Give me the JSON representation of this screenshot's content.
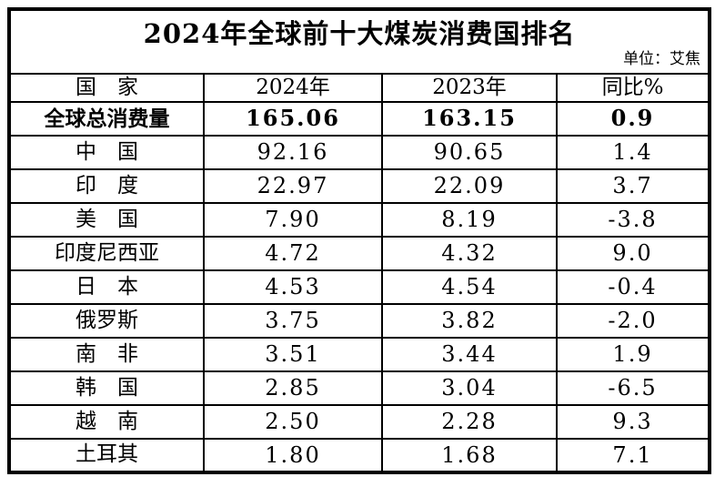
{
  "page": {
    "background": "#ffffff",
    "border_color": "#000000",
    "text_color": "#000000"
  },
  "title": "2024年全球前十大煤炭消费国排名",
  "unit_note": "单位：艾焦",
  "table": {
    "headers": {
      "country": "国　家",
      "year_2024": "2024年",
      "year_2023": "2023年",
      "yoy": "同比%"
    },
    "rows": [
      {
        "country": "全球总消费量",
        "y2024": "165.06",
        "y2023": "163.15",
        "yoy": "0.9"
      },
      {
        "country": "中　国",
        "y2024": "92.16",
        "y2023": "90.65",
        "yoy": "1.4"
      },
      {
        "country": "印　度",
        "y2024": "22.97",
        "y2023": "22.09",
        "yoy": "3.7"
      },
      {
        "country": "美　国",
        "y2024": "7.90",
        "y2023": "8.19",
        "yoy": "-3.8"
      },
      {
        "country": "印度尼西亚",
        "y2024": "4.72",
        "y2023": "4.32",
        "yoy": "9.0"
      },
      {
        "country": "日　本",
        "y2024": "4.53",
        "y2023": "4.54",
        "yoy": "-0.4"
      },
      {
        "country": "俄罗斯",
        "y2024": "3.75",
        "y2023": "3.82",
        "yoy": "-2.0"
      },
      {
        "country": "南　非",
        "y2024": "3.51",
        "y2023": "3.44",
        "yoy": "1.9"
      },
      {
        "country": "韩　国",
        "y2024": "2.85",
        "y2023": "3.04",
        "yoy": "-6.5"
      },
      {
        "country": "越　南",
        "y2024": "2.50",
        "y2023": "2.28",
        "yoy": "9.3"
      },
      {
        "country": "土耳其",
        "y2024": "1.80",
        "y2023": "1.68",
        "yoy": "7.1"
      }
    ]
  },
  "chart_data": {
    "type": "table",
    "title": "2024年全球前十大煤炭消费国排名",
    "unit": "艾焦",
    "columns": [
      "国家",
      "2024年",
      "2023年",
      "同比%"
    ],
    "rows": [
      [
        "全球总消费量",
        165.06,
        163.15,
        0.9
      ],
      [
        "中国",
        92.16,
        90.65,
        1.4
      ],
      [
        "印度",
        22.97,
        22.09,
        3.7
      ],
      [
        "美国",
        7.9,
        8.19,
        -3.8
      ],
      [
        "印度尼西亚",
        4.72,
        4.32,
        9.0
      ],
      [
        "日本",
        4.53,
        4.54,
        -0.4
      ],
      [
        "俄罗斯",
        3.75,
        3.82,
        -2.0
      ],
      [
        "南非",
        3.51,
        3.44,
        1.9
      ],
      [
        "韩国",
        2.85,
        3.04,
        -6.5
      ],
      [
        "越南",
        2.5,
        2.28,
        9.3
      ],
      [
        "土耳其",
        1.8,
        1.68,
        7.1
      ]
    ]
  }
}
